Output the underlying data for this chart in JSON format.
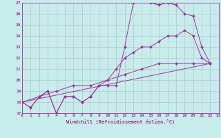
{
  "xlabel": "Windchill (Refroidissement éolien,°C)",
  "bg_color": "#c8ecec",
  "grid_color": "#b0c8c8",
  "line_color": "#993399",
  "marker_color": "#993399",
  "ylim": [
    17,
    27
  ],
  "xlim": [
    0,
    23
  ],
  "yticks": [
    17,
    18,
    19,
    20,
    21,
    22,
    23,
    24,
    25,
    26,
    27
  ],
  "xticks": [
    0,
    1,
    2,
    3,
    4,
    5,
    6,
    7,
    8,
    9,
    10,
    11,
    12,
    13,
    14,
    15,
    16,
    17,
    18,
    19,
    20,
    21,
    22,
    23
  ],
  "lines": [
    [
      0,
      18,
      1,
      17.5,
      2,
      18.5,
      3,
      19,
      4,
      17,
      5,
      18.5,
      6,
      18.5,
      7,
      18,
      8,
      18.5,
      9,
      19.5,
      10,
      19.5,
      11,
      19.5,
      12,
      23,
      13,
      27,
      14,
      27.2,
      15,
      27,
      16,
      26.8,
      17,
      27,
      18,
      26.8,
      19,
      26,
      20,
      25.8,
      21,
      23,
      22,
      21.5
    ],
    [
      0,
      18,
      1,
      17.5,
      2,
      18.5,
      3,
      19,
      4,
      17,
      5,
      18.5,
      6,
      18.5,
      7,
      18,
      8,
      18.5,
      9,
      19.5,
      10,
      20,
      11,
      21,
      12,
      22,
      13,
      22.5,
      14,
      23,
      15,
      23,
      16,
      23.5,
      17,
      24,
      18,
      24,
      19,
      24.5,
      20,
      24,
      21,
      22,
      22,
      21.5
    ],
    [
      0,
      18,
      2,
      18.5,
      4,
      19,
      6,
      19.5,
      8,
      19.5,
      10,
      20,
      12,
      20.5,
      14,
      21,
      16,
      21.5,
      18,
      21.5,
      20,
      21.5,
      22,
      21.5
    ],
    [
      0,
      18,
      22,
      21.5
    ]
  ]
}
